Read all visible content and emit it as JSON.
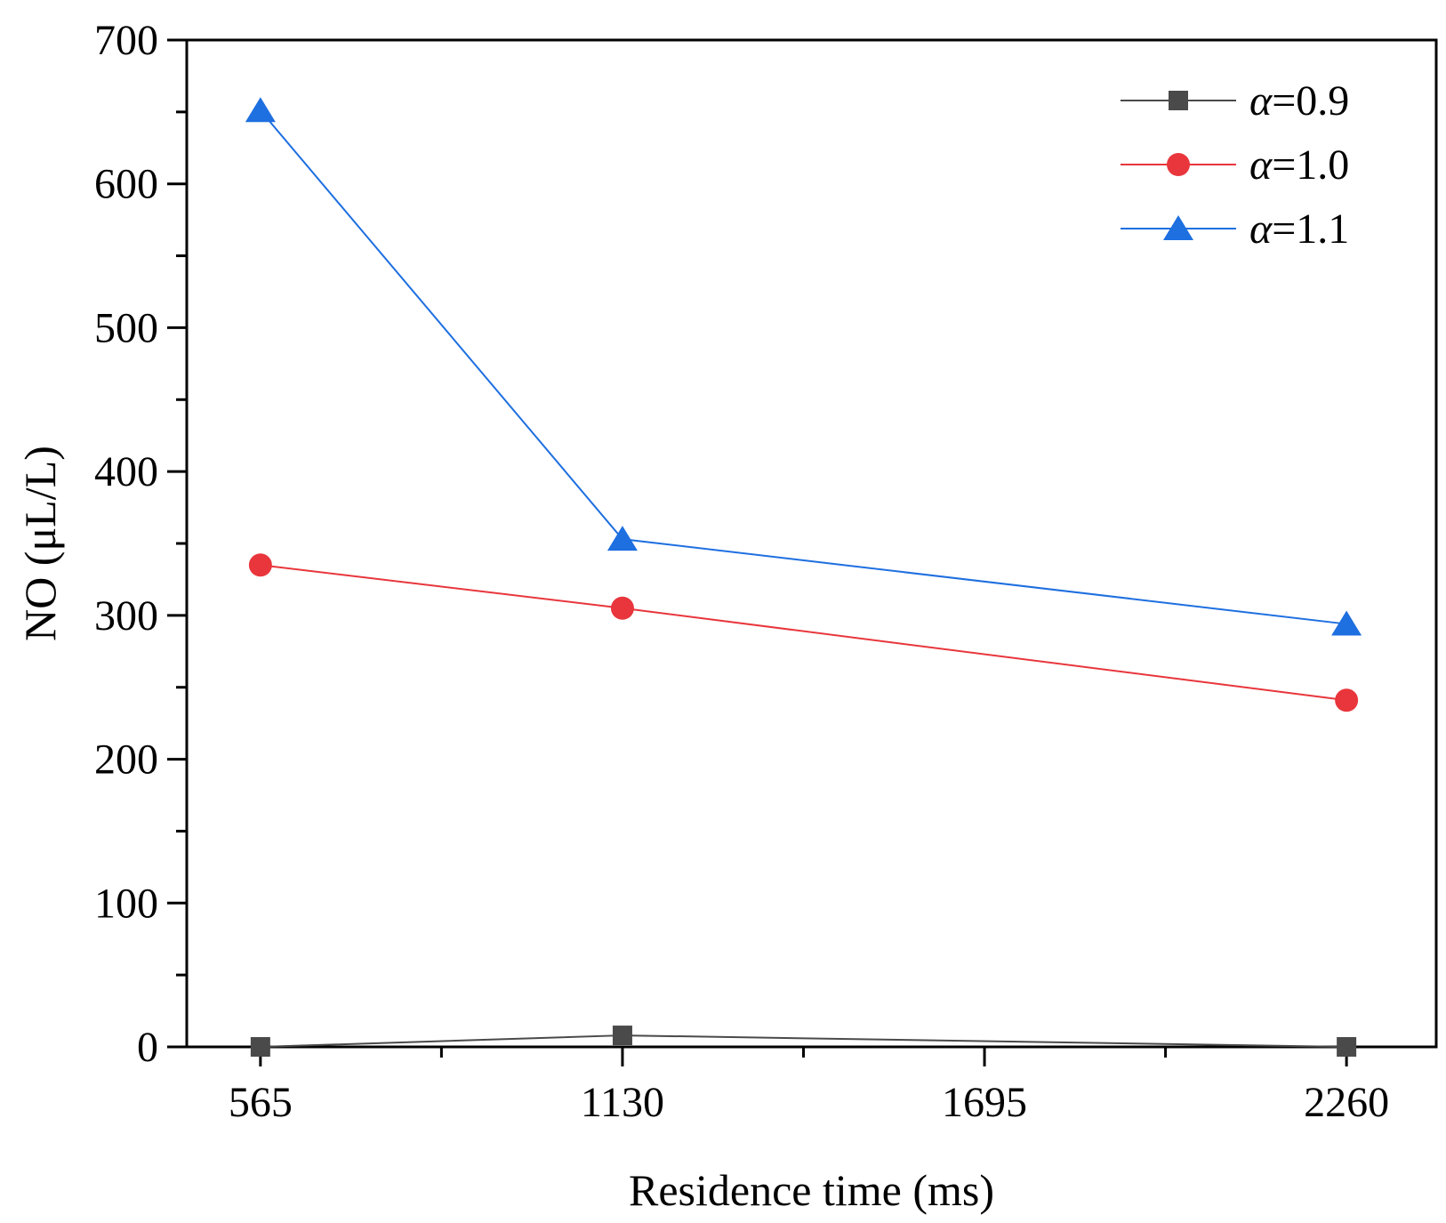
{
  "chart_data": {
    "type": "line",
    "title": "",
    "xlabel": "Residence time (ms)",
    "ylabel": "NO (μL/L)",
    "xlim": [
      450,
      2400
    ],
    "ylim": [
      0,
      700
    ],
    "x": [
      565,
      1130,
      2260
    ],
    "xticks": [
      565,
      1130,
      1695,
      2260
    ],
    "xtick_labels": [
      "565",
      "1130",
      "1695",
      "2260"
    ],
    "yticks": [
      0,
      100,
      200,
      300,
      400,
      500,
      600,
      700
    ],
    "ytick_labels": [
      "0",
      "100",
      "200",
      "300",
      "400",
      "500",
      "600",
      "700"
    ],
    "grid": false,
    "legend_position": "top-right",
    "series": [
      {
        "name": "α=0.9",
        "symbol": "α",
        "label_value": "=0.9",
        "values": [
          0,
          8,
          0
        ],
        "marker": "square",
        "color": "#4a4a4a"
      },
      {
        "name": "α=1.0",
        "symbol": "α",
        "label_value": "=1.0",
        "values": [
          335,
          305,
          241
        ],
        "marker": "circle",
        "color": "#e8363c"
      },
      {
        "name": "α=1.1",
        "symbol": "α",
        "label_value": "=1.1",
        "values": [
          651,
          353,
          294
        ],
        "marker": "triangle",
        "color": "#1e6fe0"
      }
    ]
  }
}
